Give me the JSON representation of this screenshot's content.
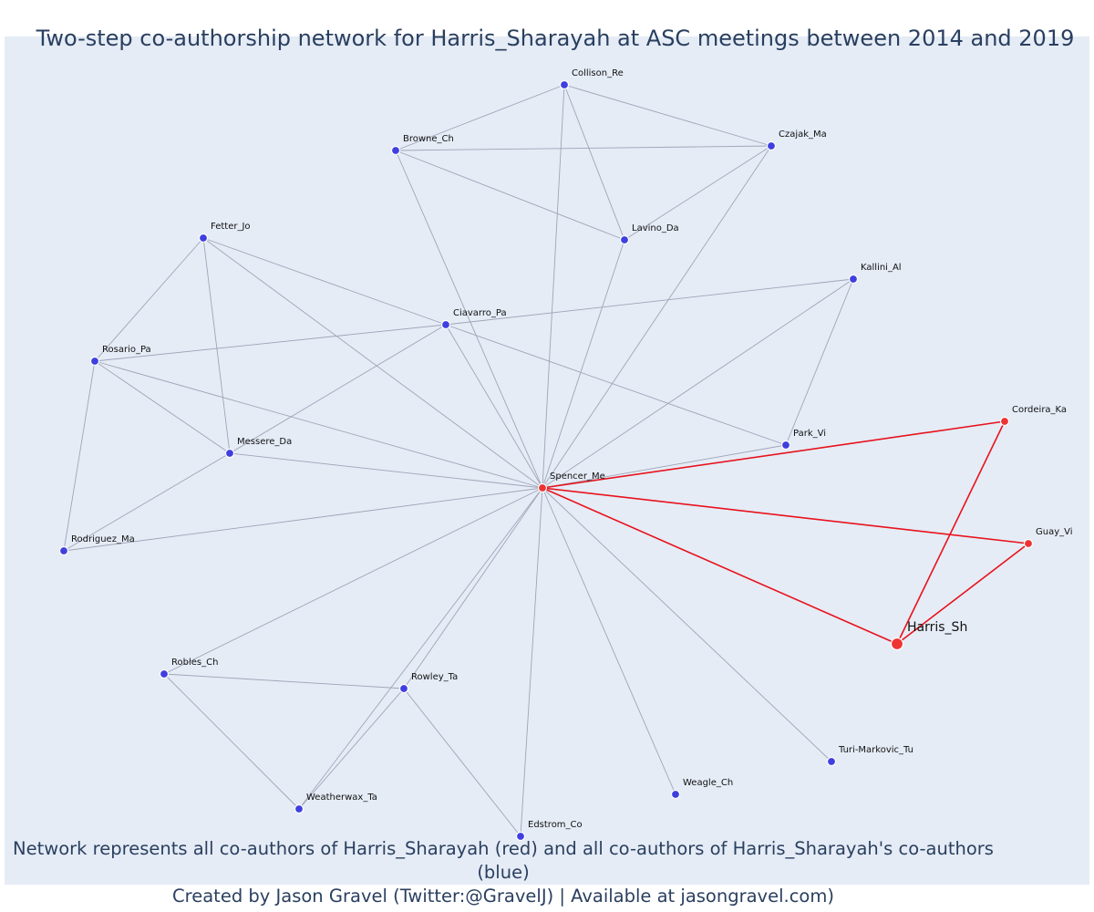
{
  "title": "Two-step co-authorship network for Harris_Sharayah at ASC meetings between 2014 and 2019",
  "caption_line1": "Network represents all co-authors of Harris_Sharayah (red) and all co-authors of Harris_Sharayah's co-authors (blue)",
  "caption_line2": "Created by Jason Gravel (Twitter:@GravelJ) | Available at jasongravel.com)",
  "colors": {
    "background": "#e5ecf6",
    "first_degree": "#ee3333",
    "second_degree": "#3f3fe0",
    "edge_first_degree": "#e8121c",
    "edge_second_degree": "#a0a4b8",
    "title_text": "#2a3f5f"
  },
  "nodes": [
    {
      "id": "Collison_Re",
      "group": "blue"
    },
    {
      "id": "Browne_Ch",
      "group": "blue"
    },
    {
      "id": "Czajak_Ma",
      "group": "blue"
    },
    {
      "id": "Lavino_Da",
      "group": "blue"
    },
    {
      "id": "Fetter_Jo",
      "group": "blue"
    },
    {
      "id": "Kallini_Al",
      "group": "blue"
    },
    {
      "id": "Ciavarro_Pa",
      "group": "blue"
    },
    {
      "id": "Rosario_Pa",
      "group": "blue"
    },
    {
      "id": "Cordeira_Ka",
      "group": "red"
    },
    {
      "id": "Park_Vi",
      "group": "blue"
    },
    {
      "id": "Messere_Da",
      "group": "blue"
    },
    {
      "id": "Spencer_Me",
      "group": "red"
    },
    {
      "id": "Guay_Vi",
      "group": "red"
    },
    {
      "id": "Rodriguez_Ma",
      "group": "blue"
    },
    {
      "id": "Harris_Sh",
      "group": "focal"
    },
    {
      "id": "Robles_Ch",
      "group": "blue"
    },
    {
      "id": "Rowley_Ta",
      "group": "blue"
    },
    {
      "id": "Turi-Markovic_Tu",
      "group": "blue"
    },
    {
      "id": "Weagle_Ch",
      "group": "blue"
    },
    {
      "id": "Weatherwax_Ta",
      "group": "blue"
    },
    {
      "id": "Edstrom_Co",
      "group": "blue"
    }
  ],
  "edges": [
    {
      "source": "Collison_Re",
      "target": "Browne_Ch",
      "group": "blue"
    },
    {
      "source": "Collison_Re",
      "target": "Czajak_Ma",
      "group": "blue"
    },
    {
      "source": "Collison_Re",
      "target": "Lavino_Da",
      "group": "blue"
    },
    {
      "source": "Collison_Re",
      "target": "Spencer_Me",
      "group": "blue"
    },
    {
      "source": "Browne_Ch",
      "target": "Czajak_Ma",
      "group": "blue"
    },
    {
      "source": "Browne_Ch",
      "target": "Lavino_Da",
      "group": "blue"
    },
    {
      "source": "Browne_Ch",
      "target": "Spencer_Me",
      "group": "blue"
    },
    {
      "source": "Czajak_Ma",
      "target": "Lavino_Da",
      "group": "blue"
    },
    {
      "source": "Czajak_Ma",
      "target": "Spencer_Me",
      "group": "blue"
    },
    {
      "source": "Lavino_Da",
      "target": "Spencer_Me",
      "group": "blue"
    },
    {
      "source": "Fetter_Jo",
      "target": "Rosario_Pa",
      "group": "blue"
    },
    {
      "source": "Fetter_Jo",
      "target": "Messere_Da",
      "group": "blue"
    },
    {
      "source": "Fetter_Jo",
      "target": "Ciavarro_Pa",
      "group": "blue"
    },
    {
      "source": "Fetter_Jo",
      "target": "Spencer_Me",
      "group": "blue"
    },
    {
      "source": "Rosario_Pa",
      "target": "Ciavarro_Pa",
      "group": "blue"
    },
    {
      "source": "Rosario_Pa",
      "target": "Messere_Da",
      "group": "blue"
    },
    {
      "source": "Rosario_Pa",
      "target": "Rodriguez_Ma",
      "group": "blue"
    },
    {
      "source": "Rosario_Pa",
      "target": "Spencer_Me",
      "group": "blue"
    },
    {
      "source": "Messere_Da",
      "target": "Ciavarro_Pa",
      "group": "blue"
    },
    {
      "source": "Messere_Da",
      "target": "Rodriguez_Ma",
      "group": "blue"
    },
    {
      "source": "Messere_Da",
      "target": "Spencer_Me",
      "group": "blue"
    },
    {
      "source": "Rodriguez_Ma",
      "target": "Spencer_Me",
      "group": "blue"
    },
    {
      "source": "Ciavarro_Pa",
      "target": "Kallini_Al",
      "group": "blue"
    },
    {
      "source": "Ciavarro_Pa",
      "target": "Park_Vi",
      "group": "blue"
    },
    {
      "source": "Ciavarro_Pa",
      "target": "Spencer_Me",
      "group": "blue"
    },
    {
      "source": "Kallini_Al",
      "target": "Park_Vi",
      "group": "blue"
    },
    {
      "source": "Kallini_Al",
      "target": "Spencer_Me",
      "group": "blue"
    },
    {
      "source": "Park_Vi",
      "target": "Spencer_Me",
      "group": "blue"
    },
    {
      "source": "Robles_Ch",
      "target": "Rowley_Ta",
      "group": "blue"
    },
    {
      "source": "Robles_Ch",
      "target": "Weatherwax_Ta",
      "group": "blue"
    },
    {
      "source": "Robles_Ch",
      "target": "Spencer_Me",
      "group": "blue"
    },
    {
      "source": "Rowley_Ta",
      "target": "Weatherwax_Ta",
      "group": "blue"
    },
    {
      "source": "Rowley_Ta",
      "target": "Edstrom_Co",
      "group": "blue"
    },
    {
      "source": "Weatherwax_Ta",
      "target": "Spencer_Me",
      "group": "blue"
    },
    {
      "source": "Edstrom_Co",
      "target": "Spencer_Me",
      "group": "blue"
    },
    {
      "source": "Rowley_Ta",
      "target": "Spencer_Me",
      "group": "blue"
    },
    {
      "source": "Weagle_Ch",
      "target": "Spencer_Me",
      "group": "blue"
    },
    {
      "source": "Turi-Markovic_Tu",
      "target": "Spencer_Me",
      "group": "blue"
    },
    {
      "source": "Spencer_Me",
      "target": "Cordeira_Ka",
      "group": "red"
    },
    {
      "source": "Spencer_Me",
      "target": "Guay_Vi",
      "group": "red"
    },
    {
      "source": "Spencer_Me",
      "target": "Harris_Sh",
      "group": "red"
    },
    {
      "source": "Cordeira_Ka",
      "target": "Harris_Sh",
      "group": "red"
    },
    {
      "source": "Guay_Vi",
      "target": "Harris_Sh",
      "group": "red"
    }
  ]
}
